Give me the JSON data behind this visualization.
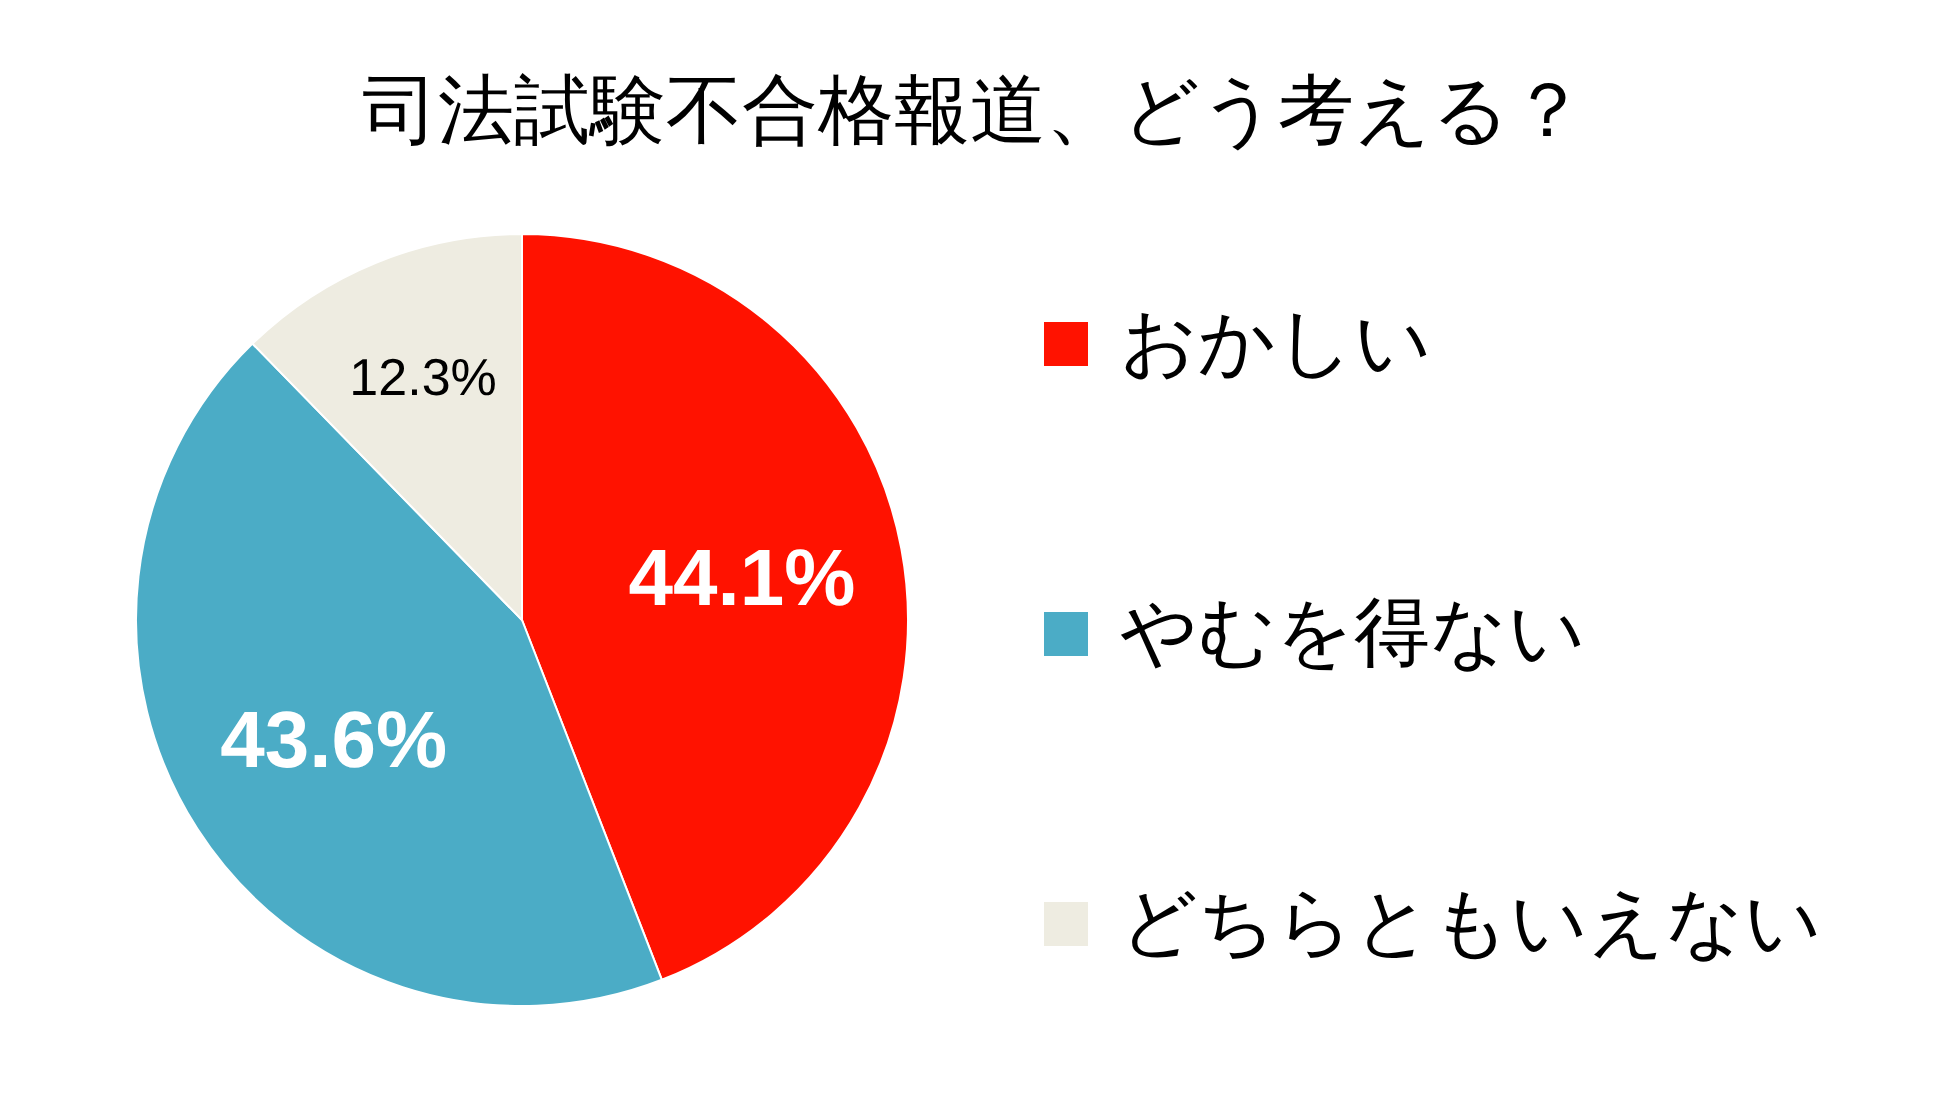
{
  "chart_data": {
    "type": "pie",
    "title": "司法試験不合格報道、どう考える？",
    "categories": [
      "おかしい",
      "やむを得ない",
      "どちらともいえない"
    ],
    "values": [
      44.1,
      43.6,
      12.3
    ],
    "colors": [
      "#ff1200",
      "#4bacc6",
      "#eeece1"
    ],
    "value_labels": [
      "44.1%",
      "43.6%",
      "12.3%"
    ],
    "legend": "right"
  }
}
